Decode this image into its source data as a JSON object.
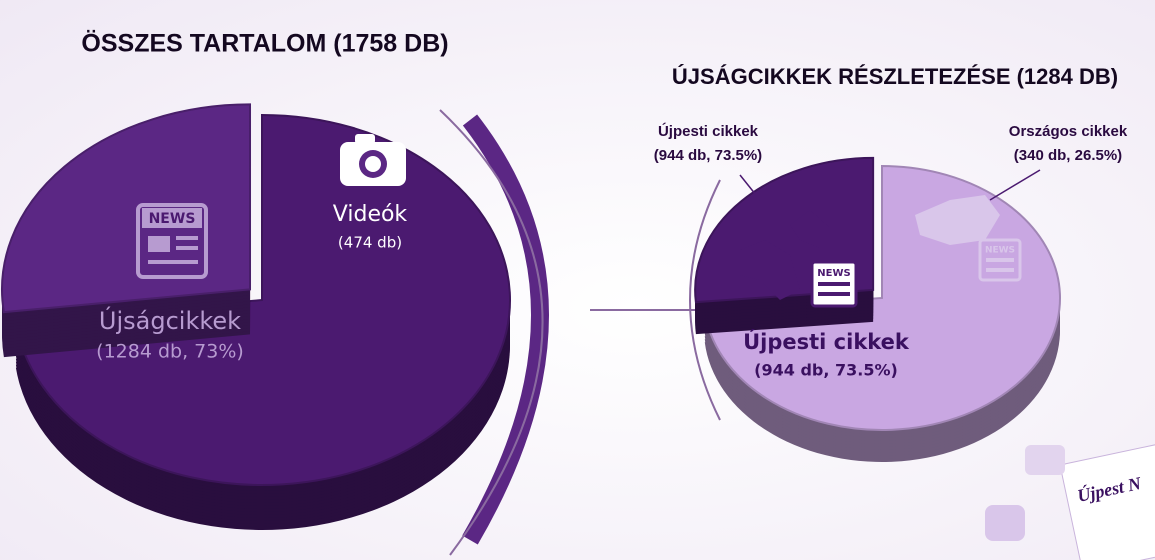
{
  "chart_data": [
    {
      "type": "pie",
      "title": "ÖSSZES TARTALOM (1758 DB)",
      "categories": [
        "Újságcikkek",
        "Videók"
      ],
      "values": [
        1284,
        474
      ],
      "value_labels": [
        "(1284 db, 73%)",
        "(474 db)"
      ],
      "colors": [
        "#4b1a70",
        "#5b2784"
      ]
    },
    {
      "type": "pie",
      "title": "ÚJSÁGCIKKEK RÉSZLETEZÉSE (1284 DB)",
      "categories": [
        "Újpesti cikkek",
        "Országos cikkek"
      ],
      "values": [
        944,
        340
      ],
      "value_labels": [
        "(944 db, 73.5%)",
        "(340 db, 26.5%)"
      ],
      "colors": [
        "#c9a7e2",
        "#4b1a70"
      ]
    }
  ],
  "icons": {
    "news": "NEWS"
  },
  "decoration": {
    "newspaper_title": "Újpest N"
  }
}
